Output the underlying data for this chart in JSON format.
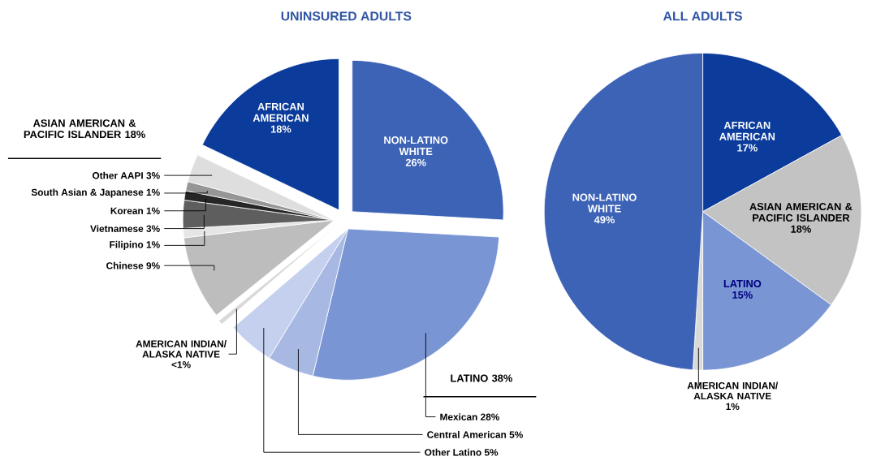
{
  "chart_data": [
    {
      "type": "pie",
      "title": "UNINSURED ADULTS",
      "categories": [
        "NON-LATINO WHITE",
        "Mexican",
        "Central American",
        "Other Latino",
        "AMERICAN INDIAN/ ALASKA NATIVE",
        "Chinese",
        "Filipino",
        "Vietnamese",
        "Korean",
        "South Asian & Japanese",
        "Other AAPI",
        "AFRICAN AMERICAN"
      ],
      "values": [
        26,
        28,
        5,
        5,
        0.5,
        9,
        1,
        3,
        1,
        1,
        3,
        18
      ],
      "value_labels": [
        "26%",
        "28%",
        "5%",
        "5%",
        "<1%",
        "9%",
        "1%",
        "3%",
        "1%",
        "1%",
        "3%",
        "18%"
      ],
      "colors": [
        "#3d63b6",
        "#7a95d4",
        "#a7b8e3",
        "#c4d0ee",
        "#d9d9d9",
        "#bdbdbd",
        "#e6e6e6",
        "#5e5e5e",
        "#262626",
        "#969696",
        "#dedede",
        "#0b3c9c"
      ],
      "annotations": [
        "ASIAN AMERICAN & PACIFIC ISLANDER 18%",
        "LATINO 38%"
      ]
    },
    {
      "type": "pie",
      "title": "ALL ADULTS",
      "categories": [
        "AFRICAN AMERICAN",
        "ASIAN AMERICAN & PACIFIC ISLANDER",
        "LATINO",
        "AMERICAN INDIAN/ ALASKA NATIVE",
        "NON-LATINO WHITE"
      ],
      "values": [
        17,
        18,
        15,
        1,
        49
      ],
      "value_labels": [
        "17%",
        "18%",
        "15%",
        "1%",
        "49%"
      ],
      "colors": [
        "#0b3c9c",
        "#c3c3c3",
        "#7a95d4",
        "#d9d9d9",
        "#3d63b6"
      ]
    }
  ]
}
